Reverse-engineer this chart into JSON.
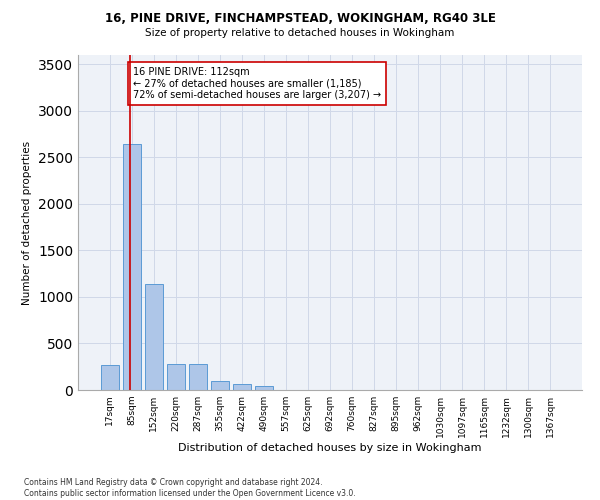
{
  "title1": "16, PINE DRIVE, FINCHAMPSTEAD, WOKINGHAM, RG40 3LE",
  "title2": "Size of property relative to detached houses in Wokingham",
  "xlabel": "Distribution of detached houses by size in Wokingham",
  "ylabel": "Number of detached properties",
  "footnote": "Contains HM Land Registry data © Crown copyright and database right 2024.\nContains public sector information licensed under the Open Government Licence v3.0.",
  "bin_labels": [
    "17sqm",
    "85sqm",
    "152sqm",
    "220sqm",
    "287sqm",
    "355sqm",
    "422sqm",
    "490sqm",
    "557sqm",
    "625sqm",
    "692sqm",
    "760sqm",
    "827sqm",
    "895sqm",
    "962sqm",
    "1030sqm",
    "1097sqm",
    "1165sqm",
    "1232sqm",
    "1300sqm",
    "1367sqm"
  ],
  "bar_values": [
    270,
    2640,
    1140,
    280,
    280,
    95,
    60,
    40,
    0,
    0,
    0,
    0,
    0,
    0,
    0,
    0,
    0,
    0,
    0,
    0,
    0
  ],
  "bar_color": "#aec6e8",
  "bar_edge_color": "#5b9bd5",
  "grid_color": "#d0d8e8",
  "background_color": "#eef2f8",
  "vline_color": "#cc0000",
  "annotation_text": "16 PINE DRIVE: 112sqm\n← 27% of detached houses are smaller (1,185)\n72% of semi-detached houses are larger (3,207) →",
  "ylim": [
    0,
    3600
  ],
  "yticks": [
    0,
    500,
    1000,
    1500,
    2000,
    2500,
    3000,
    3500
  ]
}
